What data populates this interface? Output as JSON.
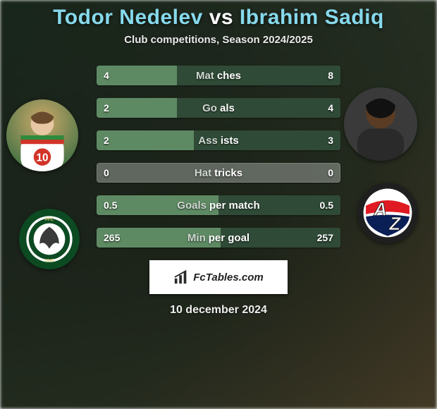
{
  "title": {
    "player1": "Todor Nedelev",
    "vs": "vs",
    "player2": "Ibrahim Sadiq"
  },
  "title_colors": {
    "player": "#86d9ec",
    "vs": "#ffffff"
  },
  "subtitle": "Club competitions, Season 2024/2025",
  "subtitle_fontsize": 15,
  "bar_track_color": "rgba(180,186,180,0.45)",
  "left_bar_color": "#5e8a63",
  "right_bar_color": "#2f4a36",
  "stats": [
    {
      "metric_left": "Mat",
      "metric_right": "ches",
      "left_val": "4",
      "right_val": "8",
      "left_pct": 33,
      "right_pct": 67
    },
    {
      "metric_left": "Go",
      "metric_right": "als",
      "left_val": "2",
      "right_val": "4",
      "left_pct": 33,
      "right_pct": 67
    },
    {
      "metric_left": "Ass",
      "metric_right": "ists",
      "left_val": "2",
      "right_val": "3",
      "left_pct": 40,
      "right_pct": 60
    },
    {
      "metric_left": "Hat",
      "metric_right": "tricks",
      "left_val": "0",
      "right_val": "0",
      "left_pct": 0,
      "right_pct": 0
    },
    {
      "metric_left": "Goals ",
      "metric_right": "per match",
      "left_val": "0.5",
      "right_val": "0.5",
      "left_pct": 50,
      "right_pct": 50
    },
    {
      "metric_left": "Min ",
      "metric_right": "per goal",
      "left_val": "265",
      "right_val": "257",
      "left_pct": 51,
      "right_pct": 49
    }
  ],
  "watermark": {
    "text": "FcTables.com"
  },
  "date": "10 december 2024",
  "background": {
    "gradient_from": "#3a5a3f",
    "gradient_to": "#a88f5c"
  },
  "club2_colors": {
    "ring": "#1f1f1f",
    "body": "#ffffff",
    "a_red": "#e01a22",
    "z_blue": "#0a1f56"
  },
  "club1_colors": {
    "ring": "#0c4a22",
    "inner": "#ffffff",
    "eagle": "#3a3a3a"
  }
}
